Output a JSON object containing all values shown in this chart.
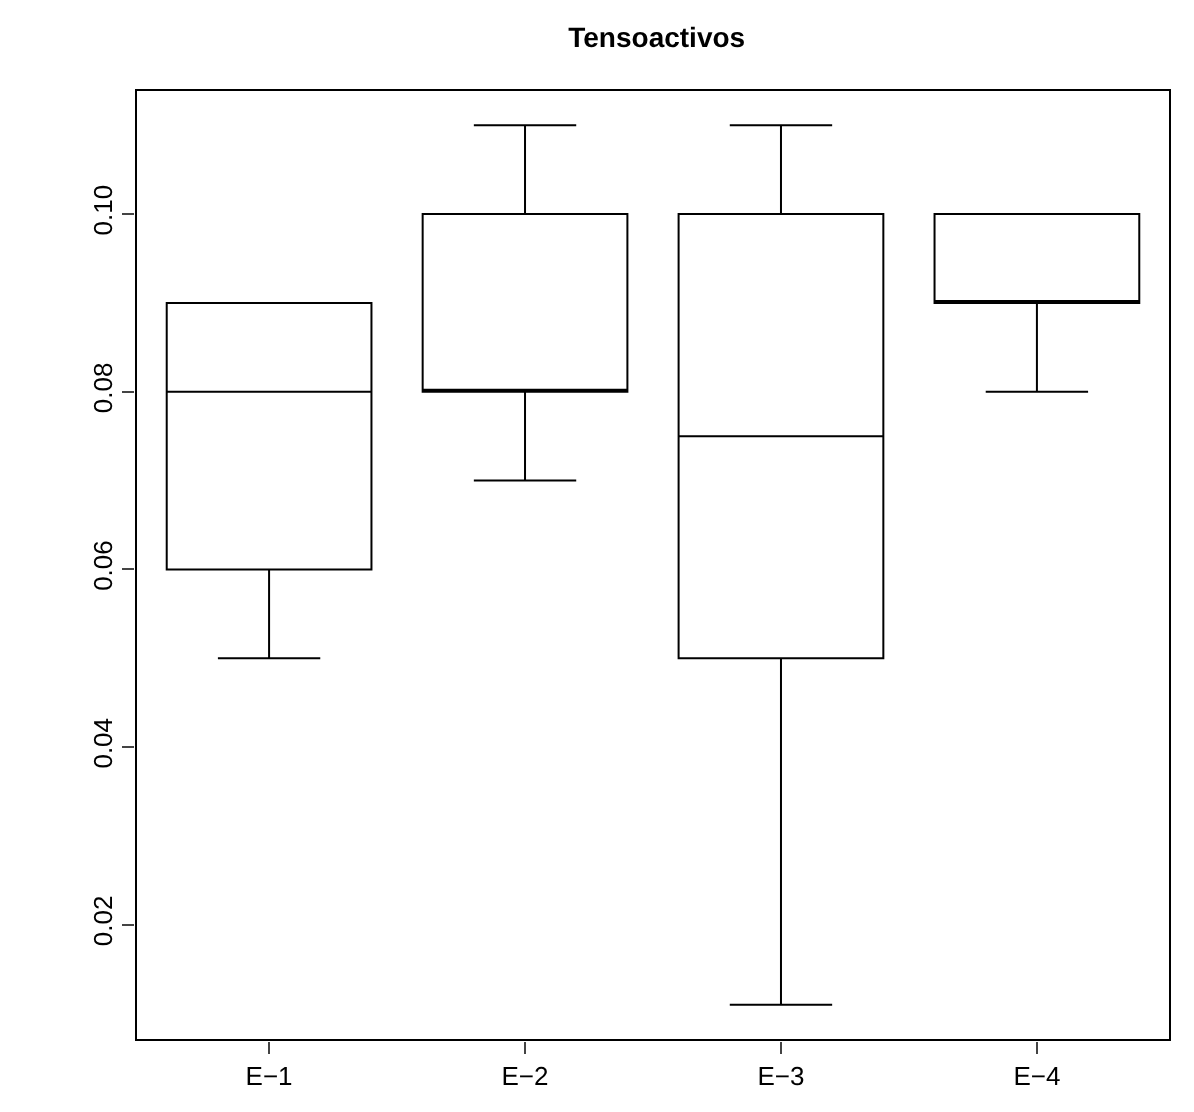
{
  "chart_data": {
    "type": "box",
    "title": "Tensoactivos",
    "categories": [
      "E−1",
      "E−2",
      "E−3",
      "E−4"
    ],
    "boxes": [
      {
        "low": 0.05,
        "q1": 0.06,
        "median": 0.08,
        "q3": 0.09,
        "high": 0.09
      },
      {
        "low": 0.07,
        "q1": 0.08,
        "median": 0.08,
        "q3": 0.1,
        "high": 0.11
      },
      {
        "low": 0.011,
        "q1": 0.05,
        "median": 0.075,
        "q3": 0.1,
        "high": 0.11
      },
      {
        "low": 0.08,
        "q1": 0.09,
        "median": 0.09,
        "q3": 0.1,
        "high": 0.1
      }
    ],
    "color": "#000000",
    "ylim": [
      0.00704,
      0.11396
    ],
    "yticks": [
      {
        "value": 0.02,
        "label": "0.02"
      },
      {
        "value": 0.04,
        "label": "0.04"
      },
      {
        "value": 0.06,
        "label": "0.06"
      },
      {
        "value": 0.08,
        "label": "0.08"
      },
      {
        "value": 0.1,
        "label": "0.10"
      }
    ],
    "grid": false,
    "legend": false
  }
}
